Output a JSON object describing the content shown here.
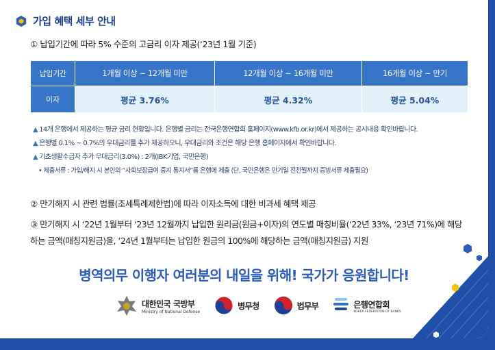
{
  "heading": "가입 혜택 세부 안내",
  "item1": "① 납입기간에 따라 5% 수준의 고금리 이자 제공(‘23년 1월 기준)",
  "table": {
    "header_label": "납입기간",
    "columns": [
      "1개월 이상 ~ 12개월 미만",
      "12개월 이상 ~ 16개월 미만",
      "16개월 이상 ~ 만기"
    ],
    "row_label": "이자",
    "values": [
      "평균 3.76%",
      "평균 4.32%",
      "평균 5.04%"
    ]
  },
  "notes": [
    "14개 은행에서 제공하는 평균 금리 현황입니다. 은행별 금리는 전국은행연합회 홈페이지(www.kfb.or.kr)에서 제공하는 공시내용 확인바랍니다.",
    "은행별 0.1% ~ 0.7%의 우대금리를 추가 제공하오니, 우대금리와 조건은 해당 은행 홈페이지에서 확인바랍니다.",
    "기초생활수급자 추가 우대금리(3.0%) : 2개(IBK기업, 국민은행)"
  ],
  "note_sub": "• 제출서류 : 가입/해지 시 본인의 “사회보장급여 중지 통지서”를 은행에 제출 (단, 국민은행은 만기일 전전월까지 증빙서류 제출필요)",
  "item2": "② 만기해지 시 관련 법률(조세특례제한법)에 따라 이자소득에 대한 비과세 혜택 제공",
  "item3": "③ 만기해지 시 ‘22년 1월부터 ‘23년 12월까지 납입한 원리금(원금+이자)의 연도별 매칭비율(‘22년 33%, ‘23년 71%)에 해당하는 금액(매칭지원금)을, ‘24년 1월부터는 납입한 원금의 100%에 해당하는 금액(매칭지원금) 지원",
  "slogan": "병역의무 이행자 여러분의 내일을 위해! 국가가 응원합니다!",
  "logos": {
    "mnd_name": "대한민국 국방부",
    "mnd_sub": "Ministry of National Defense",
    "mma_name": "병무청",
    "moj_name": "법무부",
    "kfb_name": "은행연합회",
    "kfb_sub": "KOREA FEDERATION OF BANKS"
  },
  "colors": {
    "primary_blue": "#1f4fa6",
    "table_header": "#3674c7",
    "table_cell": "#e3f1fb",
    "slogan": "#2a5cc0"
  }
}
